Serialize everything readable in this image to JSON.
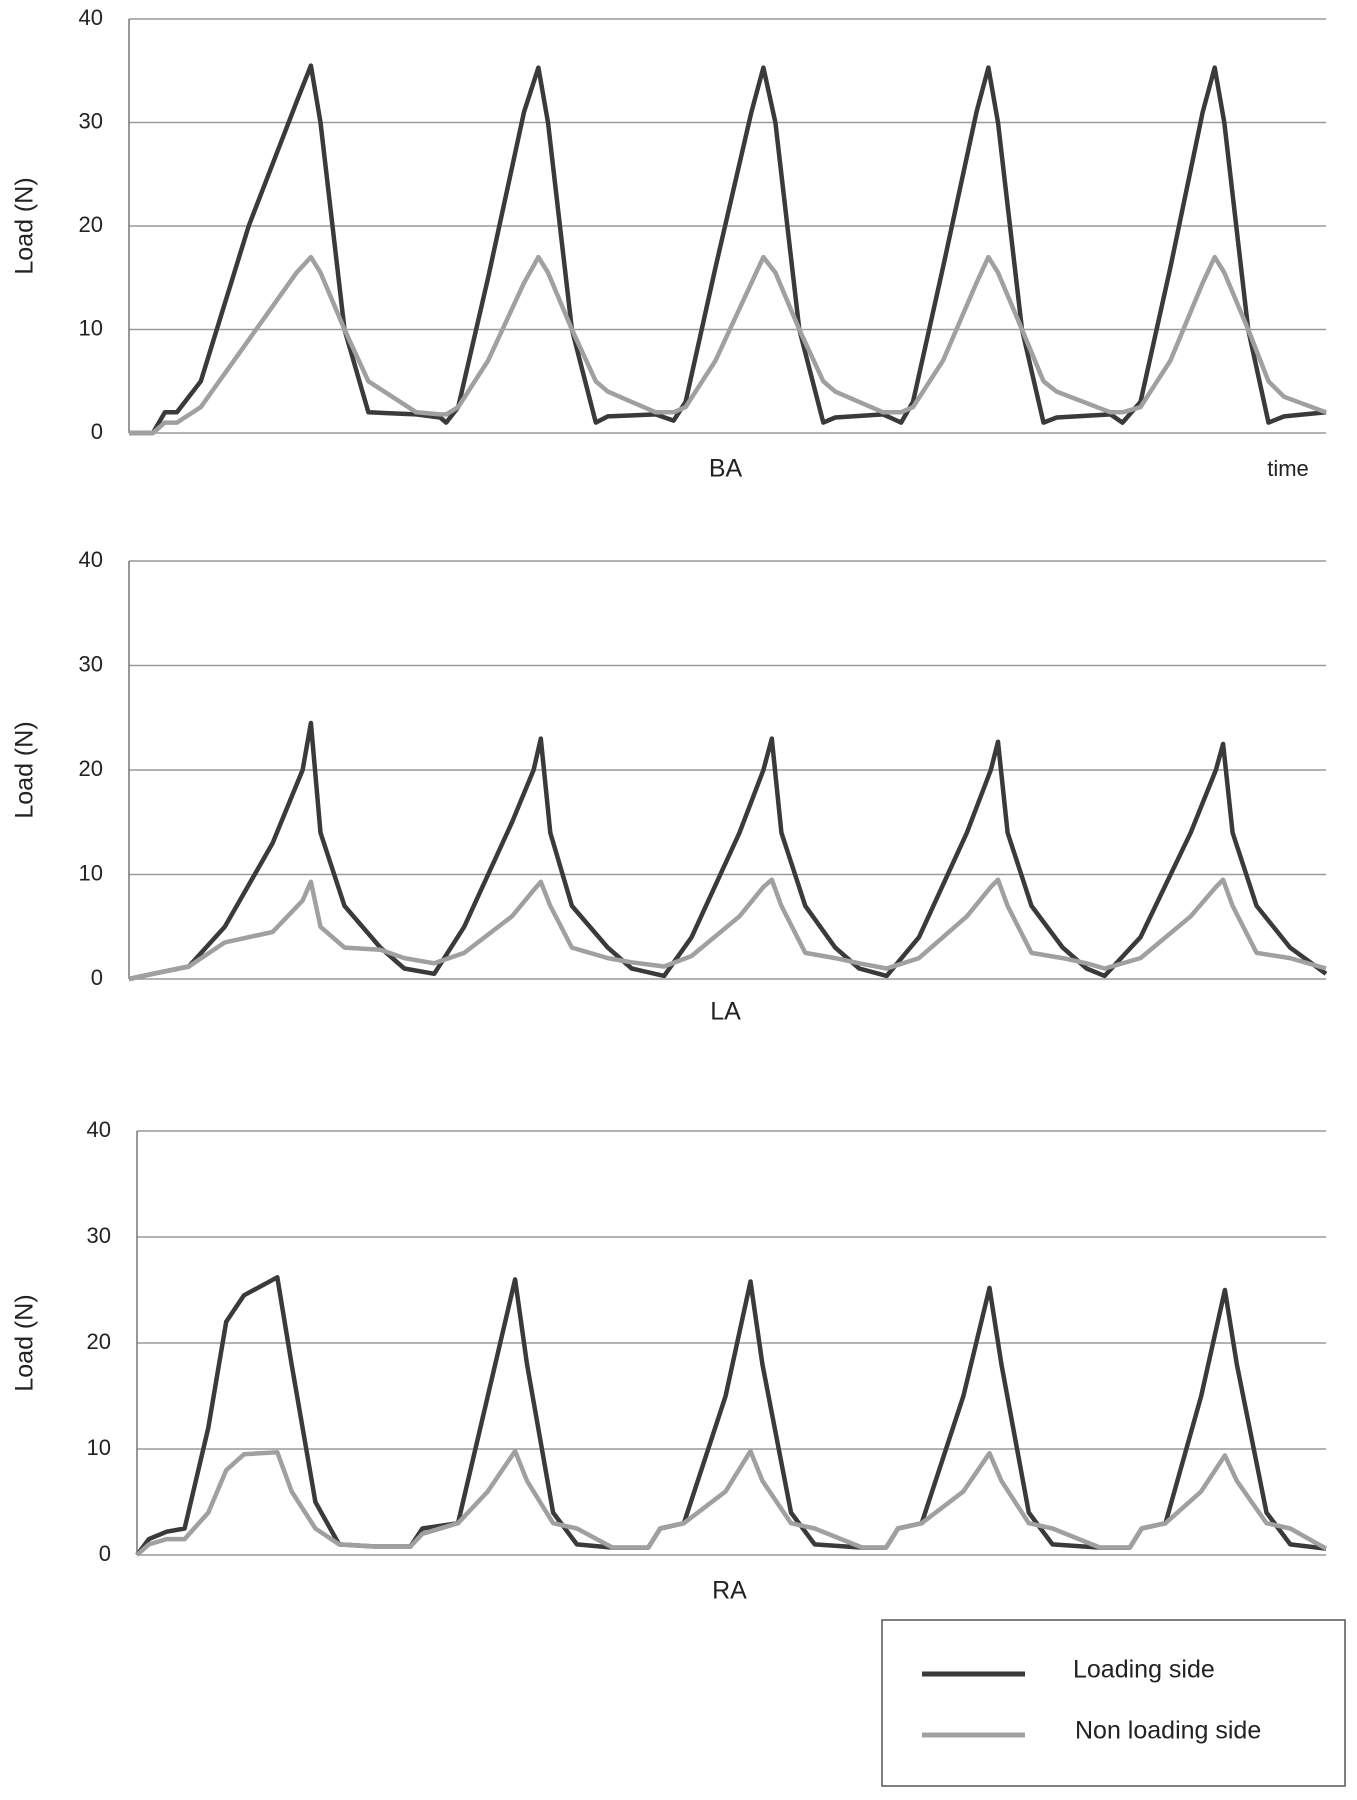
{
  "chart_data": [
    {
      "type": "line",
      "xlabel": "BA",
      "ylabel": "Load (N)",
      "annotation": "time",
      "xlim": [
        0,
        100
      ],
      "ylim": [
        0,
        40
      ],
      "yticks": [
        0,
        10,
        20,
        30,
        40
      ],
      "grid": true,
      "x": [
        0,
        2,
        3,
        4,
        6,
        10,
        14,
        15.2,
        16,
        18,
        20,
        24,
        26,
        26.5,
        27.5,
        30,
        33,
        34.2,
        35,
        37,
        39,
        40,
        44,
        45.5,
        46.5,
        49,
        52,
        53,
        54,
        56,
        58,
        59,
        63,
        64.5,
        65.5,
        68,
        70.8,
        71.8,
        72.6,
        74.6,
        76.4,
        77.5,
        82,
        83,
        84.5,
        87,
        89.7,
        90.7,
        91.5,
        93.5,
        95.2,
        96.5,
        100
      ],
      "series": [
        {
          "color": "#3a3a3a",
          "values": [
            0,
            0,
            2,
            2,
            5,
            20,
            32,
            35.5,
            30,
            10,
            2,
            1.8,
            1.5,
            1,
            2.5,
            15,
            31,
            35.3,
            30,
            10,
            1,
            1.6,
            1.8,
            1.2,
            3,
            16,
            31,
            35.3,
            30,
            10,
            1,
            1.5,
            1.8,
            1,
            3,
            16,
            31,
            35.3,
            30,
            10,
            1,
            1.5,
            1.8,
            1,
            3,
            16,
            31,
            35.3,
            30,
            10,
            1,
            1.6,
            2
          ]
        },
        {
          "color": "#a0a0a0",
          "values": [
            0,
            0,
            1,
            1,
            2.5,
            9,
            15.5,
            17,
            15.5,
            10,
            5,
            2,
            1.8,
            1.8,
            2.5,
            7,
            14.5,
            17,
            15.5,
            10,
            5,
            4,
            2,
            2,
            2.5,
            7,
            14.5,
            17,
            15.5,
            10,
            5,
            4,
            2,
            2,
            2.5,
            7,
            14.5,
            17,
            15.5,
            10,
            5,
            4,
            2,
            2,
            2.5,
            7,
            14.5,
            17,
            15.5,
            10,
            5,
            3.5,
            2
          ]
        }
      ]
    },
    {
      "type": "line",
      "xlabel": "LA",
      "ylabel": "Load (N)",
      "xlim": [
        0,
        100
      ],
      "ylim": [
        0,
        40
      ],
      "yticks": [
        0,
        10,
        20,
        30,
        40
      ],
      "grid": true,
      "x": [
        0,
        2,
        5,
        8,
        12,
        14.5,
        15.2,
        16,
        18,
        21,
        23,
        25.5,
        28,
        32,
        33.8,
        34.4,
        35.2,
        37,
        40,
        42,
        44.7,
        47,
        51,
        53,
        53.7,
        54.5,
        56.5,
        59,
        61,
        63.3,
        66,
        70,
        72,
        72.6,
        73.4,
        75.4,
        78,
        80,
        81.5,
        84.5,
        88.7,
        90.8,
        91.4,
        92.2,
        94.2,
        97,
        100
      ],
      "series": [
        {
          "color": "#3a3a3a",
          "values": [
            0,
            0.5,
            1.2,
            5,
            13,
            20,
            24.5,
            14,
            7,
            3,
            1,
            0.5,
            5,
            15,
            20,
            23,
            14,
            7,
            3,
            1,
            0.3,
            4,
            14,
            20,
            23,
            14,
            7,
            3,
            1,
            0.3,
            4,
            14,
            20,
            22.7,
            14,
            7,
            3,
            1,
            0.3,
            4,
            14,
            20,
            22.5,
            14,
            7,
            3,
            0.5
          ]
        },
        {
          "color": "#a0a0a0",
          "values": [
            0,
            0.5,
            1.2,
            3.5,
            4.5,
            7.5,
            9.3,
            5,
            3,
            2.8,
            2,
            1.5,
            2.5,
            6,
            8.5,
            9.3,
            7,
            3,
            2,
            1.6,
            1.2,
            2.2,
            6,
            8.8,
            9.5,
            7,
            2.5,
            2,
            1.5,
            1,
            2,
            6,
            8.8,
            9.5,
            7,
            2.5,
            2,
            1.5,
            1,
            2,
            6,
            8.8,
            9.5,
            7,
            2.5,
            2,
            1
          ]
        }
      ]
    },
    {
      "type": "line",
      "xlabel": "RA",
      "ylabel": "Load (N)",
      "xlim": [
        0,
        100
      ],
      "ylim": [
        0,
        40
      ],
      "yticks": [
        0,
        10,
        20,
        30,
        40
      ],
      "grid": true,
      "legend": "bottom-right",
      "x": [
        0,
        1,
        2.5,
        4,
        6,
        7.5,
        9,
        11.8,
        13,
        15,
        17,
        20,
        23,
        24,
        27,
        29.5,
        31.8,
        32.8,
        35,
        37,
        40,
        43,
        44,
        46,
        49.5,
        51.6,
        52.6,
        55,
        57,
        61,
        63,
        64,
        66,
        69.5,
        71.7,
        72.7,
        75,
        77,
        81,
        83.5,
        84.5,
        86.5,
        89.5,
        91.5,
        92.5,
        95,
        97,
        100
      ],
      "series": [
        {
          "name": "Loading side",
          "color": "#3a3a3a",
          "values": [
            0,
            1.5,
            2.2,
            2.5,
            12,
            22,
            24.5,
            26.2,
            18,
            5,
            1,
            0.8,
            0.8,
            2.5,
            3,
            15,
            26,
            18,
            4,
            1,
            0.7,
            0.7,
            2.5,
            3,
            15,
            25.8,
            18,
            4,
            1,
            0.7,
            0.7,
            2.5,
            3,
            15,
            25.2,
            18,
            4,
            1,
            0.7,
            0.7,
            2.5,
            3,
            15,
            25,
            18,
            4,
            1,
            0.6
          ]
        },
        {
          "name": "Non loading side",
          "color": "#a0a0a0",
          "values": [
            0,
            1,
            1.5,
            1.5,
            4,
            8,
            9.5,
            9.7,
            6,
            2.5,
            1,
            0.8,
            0.8,
            2,
            3,
            6,
            9.8,
            7,
            3,
            2.5,
            0.7,
            0.7,
            2.5,
            3,
            6,
            9.8,
            7,
            3,
            2.5,
            0.7,
            0.7,
            2.5,
            3,
            6,
            9.6,
            7,
            3,
            2.5,
            0.7,
            0.7,
            2.5,
            3,
            6,
            9.4,
            7,
            3,
            2.5,
            0.6
          ]
        }
      ]
    }
  ]
}
